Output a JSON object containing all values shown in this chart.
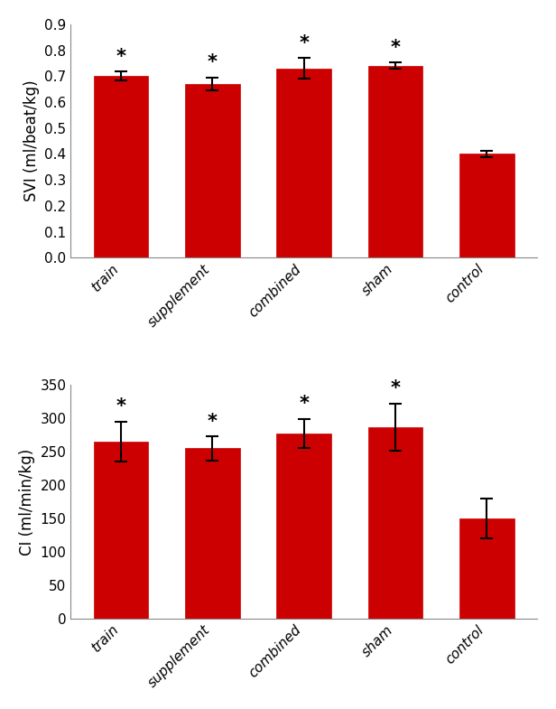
{
  "chart1": {
    "ylabel": "SVI (ml/beat/kg)",
    "categories": [
      "train",
      "supplement",
      "combined",
      "sham",
      "control"
    ],
    "values": [
      0.7,
      0.67,
      0.73,
      0.74,
      0.4
    ],
    "errors": [
      0.018,
      0.025,
      0.04,
      0.012,
      0.012
    ],
    "ylim": [
      0,
      0.9
    ],
    "yticks": [
      0,
      0.1,
      0.2,
      0.3,
      0.4,
      0.5,
      0.6,
      0.7,
      0.8,
      0.9
    ],
    "significance": [
      true,
      true,
      true,
      true,
      false
    ],
    "bar_color": "#cc0000"
  },
  "chart2": {
    "ylabel": "CI (ml/min/kg)",
    "categories": [
      "train",
      "supplement",
      "combined",
      "sham",
      "control"
    ],
    "values": [
      265,
      255,
      277,
      287,
      150
    ],
    "errors": [
      30,
      18,
      22,
      35,
      30
    ],
    "ylim": [
      0,
      350
    ],
    "yticks": [
      0,
      50,
      100,
      150,
      200,
      250,
      300,
      350
    ],
    "significance": [
      true,
      true,
      true,
      true,
      false
    ],
    "bar_color": "#cc0000"
  },
  "background_color": "#ffffff",
  "tick_label_fontsize": 11,
  "ylabel_fontsize": 12,
  "star_fontsize": 15
}
